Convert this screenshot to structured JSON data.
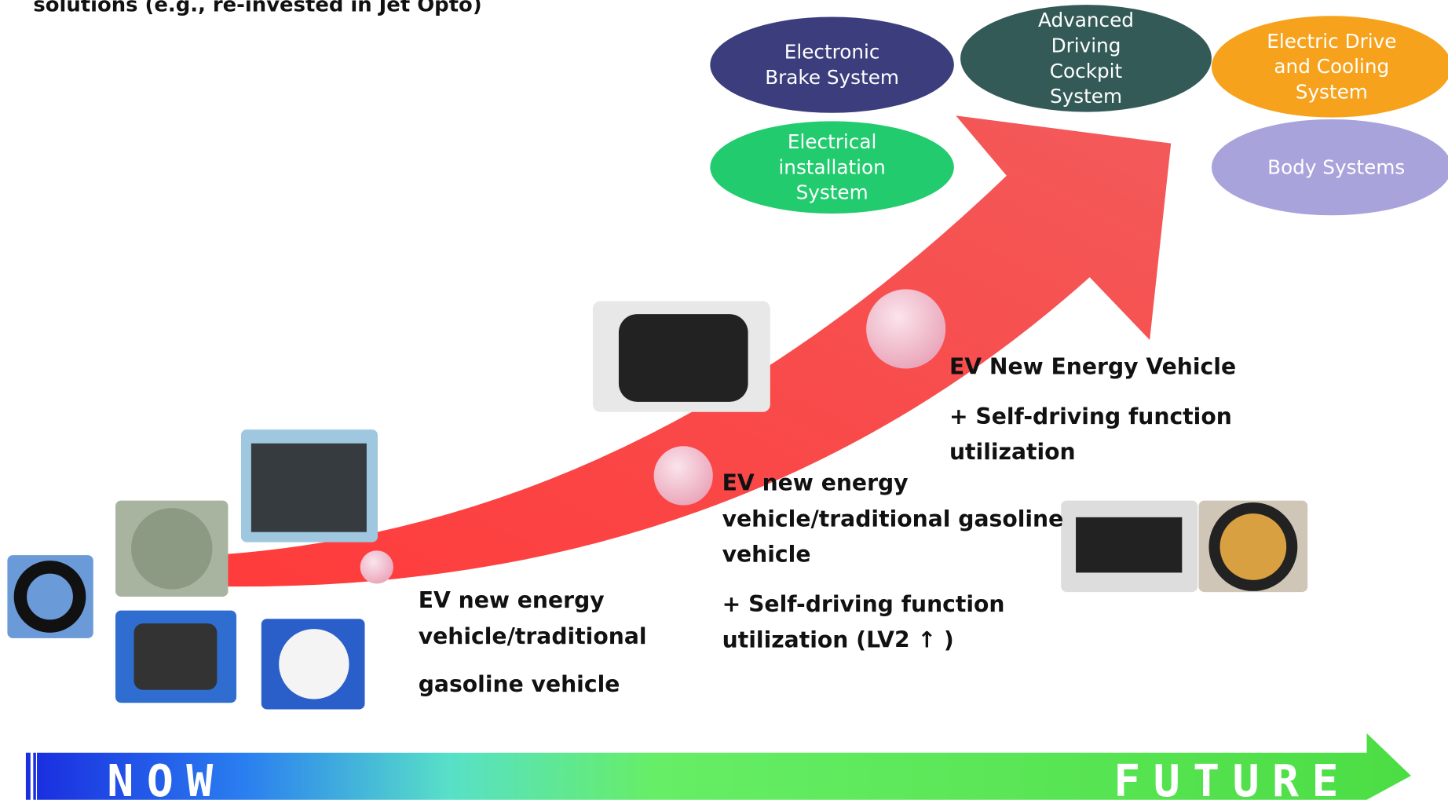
{
  "header": {
    "text": "solutions (e.g., re-invested in Jet Opto)"
  },
  "systems": [
    {
      "lines": [
        "Electronic",
        "Brake System"
      ]
    },
    {
      "lines": [
        "Advanced",
        "Driving",
        "Cockpit",
        "System"
      ]
    },
    {
      "lines": [
        "Electric Drive",
        "and Cooling",
        "System"
      ]
    },
    {
      "lines": [
        "Electrical",
        "installation",
        "System"
      ]
    },
    {
      "lines": [
        "Body Systems"
      ]
    }
  ],
  "stages": [
    {
      "lines": [
        "EV new energy",
        "vehicle/traditional",
        "gasoline vehicle"
      ]
    },
    {
      "lines": [
        "EV new energy",
        "vehicle/traditional gasoline",
        "vehicle",
        "+ Self-driving function",
        "utilization (LV2 ↑ )"
      ]
    },
    {
      "lines": [
        "EV New Energy Vehicle",
        "+ Self-driving function",
        "utilization"
      ]
    }
  ],
  "timeline": {
    "start": "NOW",
    "end": "FUTURE"
  }
}
